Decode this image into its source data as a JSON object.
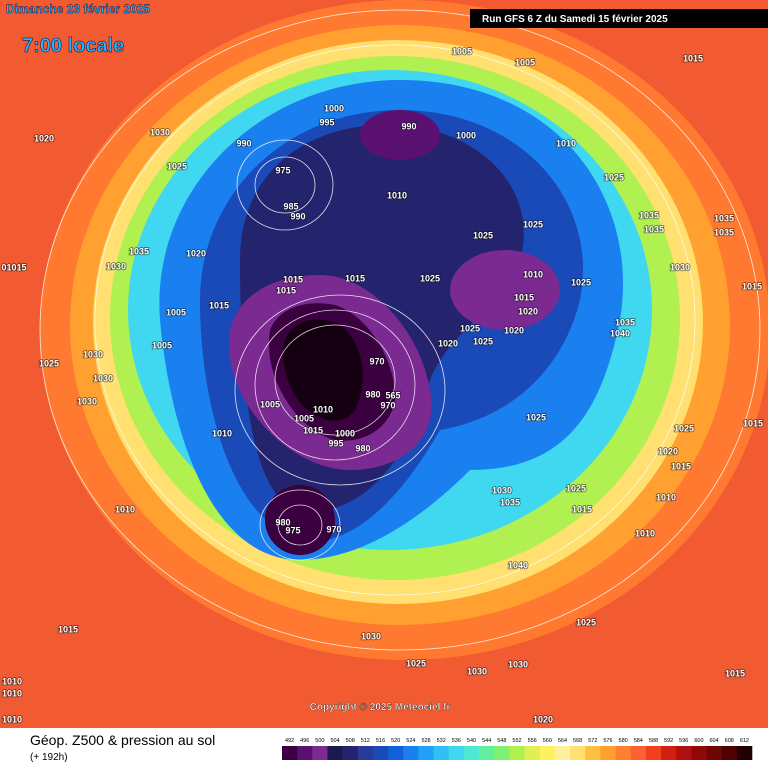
{
  "header": {
    "date": "Dimanche 23 février 2025",
    "time": "7:00 locale",
    "run": "Run GFS 6 Z du Samedi 15 février 2025"
  },
  "copyright": "Copyright © 2025 Meteociel.fr",
  "footer": {
    "title": "Géop. Z500 & pression au sol",
    "lead": "(+ 192h)"
  },
  "map": {
    "isobar_labels": [
      "1005",
      "1005",
      "1015",
      "1000",
      "995",
      "990",
      "1000",
      "1030",
      "1020",
      "990",
      "1025",
      "975",
      "1010",
      "1025",
      "985",
      "990",
      "1010",
      "1035",
      "1035",
      "1035",
      "1025",
      "1025",
      "1035",
      "1035",
      "1030",
      "1020",
      "1030",
      "1015",
      "1015",
      "1025",
      "1010",
      "1025",
      "1015",
      "1015",
      "1015",
      "1005",
      "1020",
      "1025",
      "1020",
      "1025",
      "1035",
      "1040",
      "1020",
      "1005",
      "1030",
      "1025",
      "970",
      "1030",
      "980",
      "565",
      "970",
      "1005",
      "1010",
      "1030",
      "1025",
      "1010",
      "1005",
      "1015",
      "1000",
      "995",
      "980",
      "1025",
      "1015",
      "1020",
      "1015",
      "1030",
      "1035",
      "1025",
      "1010",
      "1010",
      "980",
      "975",
      "970",
      "1015",
      "1010",
      "1040",
      "1015",
      "1030",
      "1025",
      "1025",
      "1030",
      "1030",
      "1015",
      "1010",
      "1010",
      "1010",
      "1020",
      "01015",
      "1015"
    ]
  },
  "scale": {
    "values": [
      492,
      496,
      500,
      504,
      508,
      512,
      516,
      520,
      524,
      528,
      532,
      536,
      540,
      544,
      548,
      552,
      556,
      560,
      564,
      568,
      572,
      576,
      580,
      584,
      588,
      592,
      596,
      600,
      604,
      608,
      612
    ],
    "colors": [
      "#3a003f",
      "#5a1070",
      "#7a2a90",
      "#1a1a50",
      "#24246e",
      "#2a3a9a",
      "#1a4ab8",
      "#1060d8",
      "#1a80f0",
      "#20a0f8",
      "#30c0f8",
      "#40d8f0",
      "#50e8d0",
      "#60f0a0",
      "#80f070",
      "#b0f050",
      "#e0f050",
      "#fff060",
      "#fff0a0",
      "#ffe070",
      "#ffc040",
      "#ffa030",
      "#ff8030",
      "#ff6030",
      "#f04020",
      "#d02010",
      "#b01010",
      "#900808",
      "#700505",
      "#500000",
      "#200000"
    ]
  }
}
